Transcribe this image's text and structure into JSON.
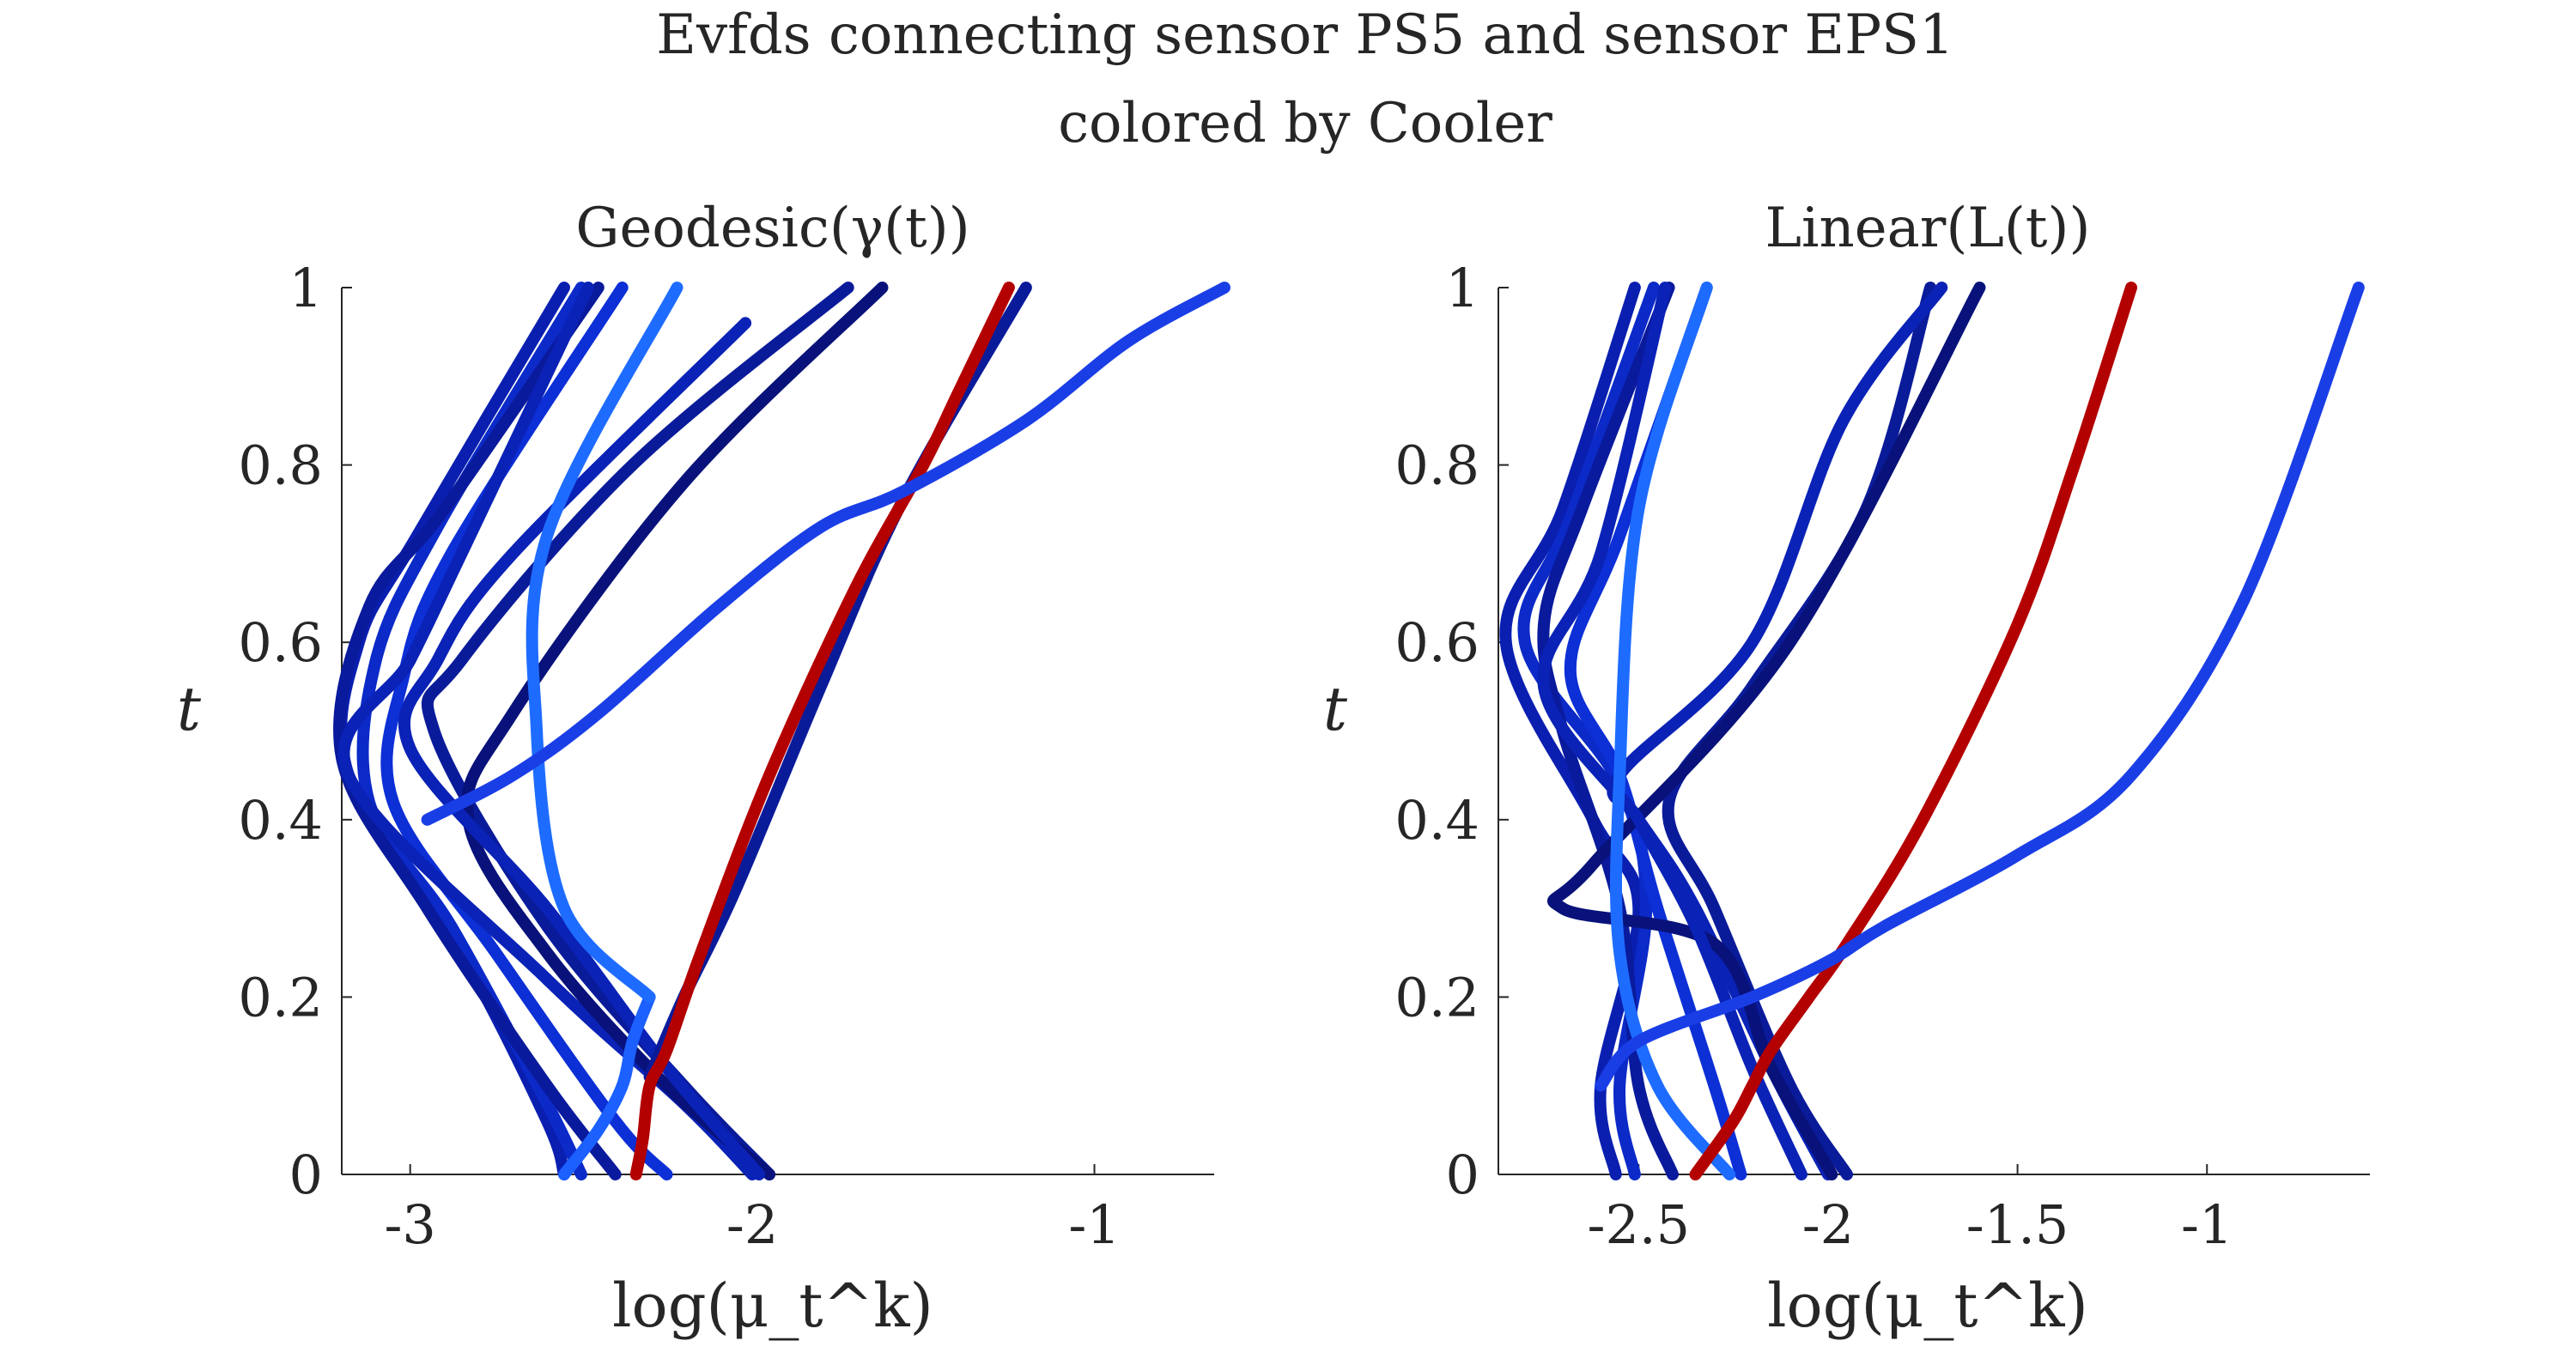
{
  "figure": {
    "title_line1": "Evfds connecting sensor PS5 and sensor EPS1",
    "title_line2": "colored by Cooler"
  },
  "chart_data": [
    {
      "type": "line",
      "title": "Geodesic(γ(t))",
      "xlabel": "log(μ_t^k)",
      "ylabel": "t",
      "xlim": [
        -3.2,
        -0.65
      ],
      "ylim": [
        0,
        1
      ],
      "xticks": [
        -3,
        -2,
        -1
      ],
      "xtick_labels": [
        "-3",
        "-2",
        "-1"
      ],
      "yticks": [
        0,
        0.2,
        0.4,
        0.6,
        0.8,
        1
      ],
      "ytick_labels": [
        "0",
        "0.2",
        "0.4",
        "0.6",
        "0.8",
        "1"
      ],
      "grid": false,
      "color_scale": "jet",
      "series": [
        {
          "color": "#0a1fb0",
          "points": [
            [
              -2.55,
              0
            ],
            [
              -2.6,
              0.06
            ],
            [
              -2.85,
              0.25
            ],
            [
              -3.18,
              0.45
            ],
            [
              -3.15,
              0.6
            ],
            [
              -2.98,
              0.72
            ],
            [
              -2.55,
              1.0
            ]
          ]
        },
        {
          "color": "#0b2ac8",
          "points": [
            [
              -2.5,
              0
            ],
            [
              -2.6,
              0.08
            ],
            [
              -2.88,
              0.28
            ],
            [
              -3.12,
              0.42
            ],
            [
              -3.1,
              0.58
            ],
            [
              -2.92,
              0.73
            ],
            [
              -2.5,
              1.0
            ]
          ]
        },
        {
          "color": "#0a1a9c",
          "points": [
            [
              -2.4,
              0
            ],
            [
              -2.6,
              0.1
            ],
            [
              -2.95,
              0.3
            ],
            [
              -3.2,
              0.47
            ],
            [
              -3.12,
              0.64
            ],
            [
              -2.9,
              0.75
            ],
            [
              -2.45,
              1.0
            ]
          ]
        },
        {
          "color": "#0c2fd6",
          "points": [
            [
              -2.25,
              0
            ],
            [
              -2.4,
              0.06
            ],
            [
              -2.75,
              0.25
            ],
            [
              -3.05,
              0.42
            ],
            [
              -3.02,
              0.56
            ],
            [
              -2.88,
              0.7
            ],
            [
              -2.38,
              1.0
            ]
          ]
        },
        {
          "color": "#0a22b6",
          "points": [
            [
              -2.0,
              0
            ],
            [
              -2.2,
              0.08
            ],
            [
              -2.6,
              0.22
            ],
            [
              -3.18,
              0.45
            ],
            [
              -3.0,
              0.58
            ],
            [
              -2.85,
              0.7
            ],
            [
              -2.48,
              1.0
            ]
          ]
        },
        {
          "color": "#0a1b9a",
          "points": [
            [
              -1.95,
              0
            ],
            [
              -2.2,
              0.1
            ],
            [
              -2.6,
              0.28
            ],
            [
              -2.93,
              0.5
            ],
            [
              -2.85,
              0.58
            ],
            [
              -2.35,
              0.8
            ],
            [
              -1.72,
              1.0
            ]
          ]
        },
        {
          "color": "#08127a",
          "points": [
            [
              -1.95,
              0
            ],
            [
              -2.25,
              0.1
            ],
            [
              -2.6,
              0.25
            ],
            [
              -2.83,
              0.4
            ],
            [
              -2.7,
              0.52
            ],
            [
              -2.2,
              0.78
            ],
            [
              -1.62,
              1.0
            ]
          ]
        },
        {
          "color": "#0a22b6",
          "points": [
            [
              -1.98,
              0
            ],
            [
              -2.25,
              0.12
            ],
            [
              -2.6,
              0.3
            ],
            [
              -3.0,
              0.48
            ],
            [
              -2.92,
              0.58
            ],
            [
              -2.7,
              0.7
            ],
            [
              -2.02,
              0.96
            ]
          ]
        },
        {
          "color": "#1c60ff",
          "points": [
            [
              -2.55,
              0
            ],
            [
              -2.45,
              0.05
            ],
            [
              -2.38,
              0.1
            ],
            [
              -2.35,
              0.15
            ],
            [
              -2.3,
              0.2
            ]
          ]
        },
        {
          "color": "#1e6cff",
          "points": [
            [
              -2.3,
              0.2
            ],
            [
              -2.55,
              0.3
            ],
            [
              -2.63,
              0.5
            ],
            [
              -2.6,
              0.72
            ],
            [
              -2.22,
              1.0
            ]
          ]
        },
        {
          "color": "#0a1b9a",
          "points": [
            [
              -2.3,
              0.11
            ],
            [
              -2.2,
              0.2
            ],
            [
              -2.05,
              0.32
            ],
            [
              -1.8,
              0.55
            ],
            [
              -1.56,
              0.76
            ],
            [
              -1.2,
              1.0
            ]
          ]
        },
        {
          "color": "#b30000",
          "points": [
            [
              -2.34,
              0
            ],
            [
              -2.32,
              0.04
            ],
            [
              -2.3,
              0.1
            ],
            [
              -2.25,
              0.14
            ],
            [
              -2.15,
              0.25
            ],
            [
              -1.95,
              0.45
            ],
            [
              -1.7,
              0.66
            ],
            [
              -1.5,
              0.8
            ],
            [
              -1.4,
              0.88
            ],
            [
              -1.25,
              1.0
            ]
          ]
        },
        {
          "color": "#1a3ee6",
          "points": [
            [
              -2.95,
              0.4
            ],
            [
              -2.7,
              0.45
            ],
            [
              -2.45,
              0.52
            ],
            [
              -2.1,
              0.64
            ],
            [
              -1.8,
              0.73
            ],
            [
              -1.56,
              0.77
            ],
            [
              -1.2,
              0.85
            ],
            [
              -0.9,
              0.94
            ],
            [
              -0.62,
              1.0
            ]
          ]
        }
      ]
    },
    {
      "type": "line",
      "title": "Linear(L(t))",
      "xlabel": "log(μ_t^k)",
      "ylabel": "t",
      "xlim": [
        -2.87,
        -0.57
      ],
      "ylim": [
        0,
        1
      ],
      "xticks": [
        -2.5,
        -2,
        -1.5,
        -1
      ],
      "xtick_labels": [
        "-2.5",
        "-2",
        "-1.5",
        "-1"
      ],
      "yticks": [
        0,
        0.2,
        0.4,
        0.6,
        0.8,
        1
      ],
      "ytick_labels": [
        "0",
        "0.2",
        "0.4",
        "0.6",
        "0.8",
        "1"
      ],
      "grid": false,
      "color_scale": "jet",
      "series": [
        {
          "color": "#0a1fb0",
          "points": [
            [
              -2.56,
              0
            ],
            [
              -2.6,
              0.1
            ],
            [
              -2.5,
              0.3
            ],
            [
              -2.62,
              0.4
            ],
            [
              -2.85,
              0.6
            ],
            [
              -2.7,
              0.75
            ],
            [
              -2.51,
              1.0
            ]
          ]
        },
        {
          "color": "#0b2ac8",
          "points": [
            [
              -2.51,
              0
            ],
            [
              -2.55,
              0.1
            ],
            [
              -2.48,
              0.3
            ],
            [
              -2.55,
              0.44
            ],
            [
              -2.8,
              0.6
            ],
            [
              -2.68,
              0.74
            ],
            [
              -2.46,
              1.0
            ]
          ]
        },
        {
          "color": "#0a1a9c",
          "points": [
            [
              -2.41,
              0
            ],
            [
              -2.5,
              0.1
            ],
            [
              -2.55,
              0.3
            ],
            [
              -2.7,
              0.5
            ],
            [
              -2.75,
              0.62
            ],
            [
              -2.65,
              0.75
            ],
            [
              -2.42,
              1.0
            ]
          ]
        },
        {
          "color": "#0c2fd6",
          "points": [
            [
              -2.23,
              0
            ],
            [
              -2.3,
              0.1
            ],
            [
              -2.45,
              0.3
            ],
            [
              -2.55,
              0.45
            ],
            [
              -2.68,
              0.57
            ],
            [
              -2.55,
              0.72
            ],
            [
              -2.32,
              1.0
            ]
          ]
        },
        {
          "color": "#0a22b6",
          "points": [
            [
              -2.0,
              0
            ],
            [
              -2.15,
              0.12
            ],
            [
              -2.35,
              0.3
            ],
            [
              -2.5,
              0.4
            ],
            [
              -2.75,
              0.55
            ],
            [
              -2.6,
              0.7
            ],
            [
              -2.43,
              1.0
            ]
          ]
        },
        {
          "color": "#0a1b9a",
          "points": [
            [
              -1.95,
              0
            ],
            [
              -2.1,
              0.1
            ],
            [
              -2.3,
              0.3
            ],
            [
              -2.42,
              0.42
            ],
            [
              -2.2,
              0.55
            ],
            [
              -1.9,
              0.75
            ],
            [
              -1.73,
              1.0
            ]
          ]
        },
        {
          "color": "#08127a",
          "points": [
            [
              -1.99,
              0
            ],
            [
              -2.15,
              0.12
            ],
            [
              -2.3,
              0.26
            ],
            [
              -2.7,
              0.3
            ],
            [
              -2.62,
              0.35
            ],
            [
              -2.1,
              0.6
            ],
            [
              -1.6,
              1.0
            ]
          ]
        },
        {
          "color": "#0a22b6",
          "points": [
            [
              -2.07,
              0
            ],
            [
              -2.2,
              0.12
            ],
            [
              -2.35,
              0.28
            ],
            [
              -2.5,
              0.4
            ],
            [
              -2.55,
              0.45
            ],
            [
              -2.2,
              0.6
            ],
            [
              -1.96,
              0.85
            ],
            [
              -1.7,
              1.0
            ]
          ]
        },
        {
          "color": "#1e6cff",
          "points": [
            [
              -2.26,
              0
            ],
            [
              -2.45,
              0.1
            ],
            [
              -2.55,
              0.25
            ],
            [
              -2.55,
              0.45
            ],
            [
              -2.5,
              0.75
            ],
            [
              -2.32,
              1.0
            ]
          ]
        },
        {
          "color": "#b30000",
          "points": [
            [
              -2.35,
              0
            ],
            [
              -2.25,
              0.06
            ],
            [
              -2.2,
              0.1
            ],
            [
              -2.15,
              0.14
            ],
            [
              -2.05,
              0.2
            ],
            [
              -1.95,
              0.26
            ],
            [
              -1.75,
              0.4
            ],
            [
              -1.5,
              0.62
            ],
            [
              -1.35,
              0.8
            ],
            [
              -1.2,
              1.0
            ]
          ]
        },
        {
          "color": "#1a3ee6",
          "points": [
            [
              -2.6,
              0.1
            ],
            [
              -2.5,
              0.15
            ],
            [
              -2.2,
              0.2
            ],
            [
              -2.0,
              0.24
            ],
            [
              -1.85,
              0.28
            ],
            [
              -1.5,
              0.36
            ],
            [
              -1.2,
              0.45
            ],
            [
              -0.9,
              0.65
            ],
            [
              -0.6,
              1.0
            ]
          ]
        }
      ]
    }
  ]
}
